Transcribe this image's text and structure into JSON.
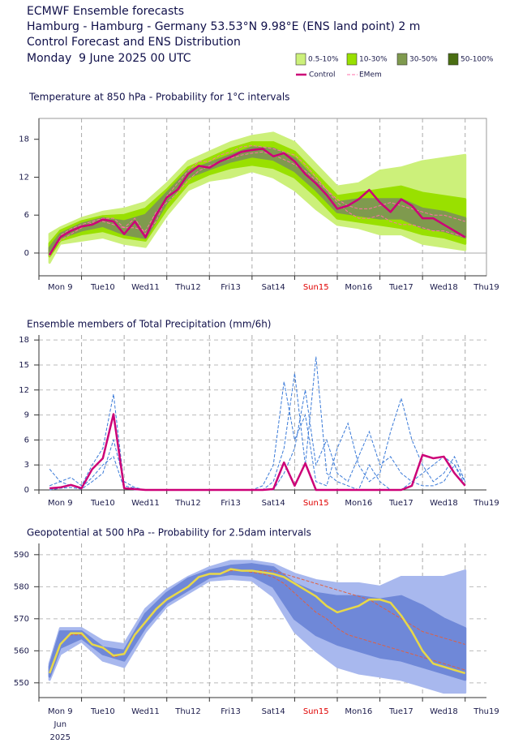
{
  "header": {
    "lines": [
      "ECMWF Ensemble forecasts",
      "Hamburg - Hamburg - Germany 53.53°N 9.98°E (ENS land point) 2 m",
      "Control Forecast and ENS Distribution",
      "Monday  9 June 2025 00 UTC"
    ]
  },
  "chart_data": [
    {
      "type": "band-line",
      "title": "Temperature at 850 hPa - Probability for 1°C intervals",
      "xlim": [
        0,
        252
      ],
      "xticks": [
        {
          "value": 0,
          "label": "Mon 9"
        },
        {
          "value": 24,
          "label": "Tue10"
        },
        {
          "value": 48,
          "label": "Wed11"
        },
        {
          "value": 72,
          "label": "Thu12"
        },
        {
          "value": 96,
          "label": "Fri13"
        },
        {
          "value": 120,
          "label": "Sat14"
        },
        {
          "value": 144,
          "label": "Sun15",
          "color": "#e00000"
        },
        {
          "value": 168,
          "label": "Mon16"
        },
        {
          "value": 192,
          "label": "Tue17"
        },
        {
          "value": 216,
          "label": "Wed18"
        },
        {
          "value": 240,
          "label": "Thu19"
        }
      ],
      "ylim": [
        -3.6,
        21.3
      ],
      "yticks": [
        0,
        6,
        12,
        18
      ],
      "zero_line": true,
      "frame": true,
      "x": [
        6,
        12,
        18,
        24,
        30,
        36,
        42,
        48,
        54,
        60,
        66,
        72,
        78,
        84,
        90,
        96,
        102,
        108,
        114,
        120,
        126,
        132,
        138,
        144,
        150,
        156,
        162,
        168,
        174,
        180,
        186,
        192,
        198,
        204,
        210,
        216,
        222,
        228,
        234,
        240
      ],
      "bands": {
        "x": [
          6,
          12,
          24,
          36,
          48,
          60,
          72,
          84,
          96,
          108,
          120,
          132,
          144,
          156,
          168,
          180,
          192,
          204,
          216,
          228,
          240
        ],
        "series": [
          {
            "name": "0.5-10%",
            "color": "#ccf07a",
            "low": [
              -1.5,
              1.5,
              2,
              2.5,
              1.5,
              1,
              6,
              10,
              11.5,
              12,
              13,
              12,
              10,
              7,
              4.5,
              4,
              3,
              3,
              1.5,
              1,
              0.5
            ],
            "high": [
              3,
              4,
              5.5,
              6.5,
              7,
              8,
              11,
              14.5,
              16,
              17.5,
              18.5,
              19,
              17.5,
              14,
              10.5,
              11,
              13,
              13.5,
              14.5,
              15,
              15.5
            ]
          },
          {
            "name": "10-30%",
            "color": "#99e000",
            "low": [
              -0.5,
              2,
              3,
              3.5,
              2.5,
              2,
              7,
              11,
              12.5,
              13.5,
              14,
              13.5,
              12,
              9,
              5.5,
              5,
              4.5,
              4,
              3,
              2.5,
              1.5
            ],
            "high": [
              1.5,
              3.5,
              5,
              5.8,
              6,
              7,
              10,
              13.5,
              15,
              16.5,
              17.5,
              17.5,
              16,
              12.5,
              9,
              9.5,
              10,
              10.5,
              9.5,
              9,
              8.5
            ]
          },
          {
            "name": "30-50%",
            "color": "#7f9a4e",
            "low": [
              -0.2,
              2.4,
              3.6,
              4.3,
              3,
              2.4,
              8,
              12,
              13.3,
              14.5,
              15.3,
              14.8,
              13,
              10,
              6.5,
              6,
              5.5,
              5.5,
              4,
              3.5,
              2.5
            ],
            "high": [
              0.8,
              3,
              4.6,
              5.5,
              5,
              6,
              9.5,
              13,
              14.2,
              15.5,
              16.7,
              16.5,
              15,
              11.5,
              8,
              8.5,
              8.5,
              8.5,
              7,
              6.5,
              5.5
            ]
          },
          {
            "name": "50-100%",
            "color": "#4a6e12"
          }
        ]
      },
      "members": {
        "name": "EMem",
        "color": "#ff6fa8",
        "values": [
          [
            0,
            2,
            3,
            4,
            4.8,
            5,
            4.5,
            4,
            4,
            3.5,
            6.5,
            8,
            9.5,
            11.5,
            13,
            13.8,
            14.5,
            15,
            15.5,
            15.8,
            16,
            15.5,
            14.8,
            14,
            13,
            11.5,
            10,
            8.5,
            7.5,
            7,
            7,
            7.5,
            8,
            7.5,
            7,
            6.5,
            6,
            6,
            5.5,
            5
          ],
          [
            -0.5,
            2.8,
            3.8,
            4.5,
            5,
            5.5,
            5.5,
            4,
            5.5,
            3,
            5,
            9,
            11,
            13,
            14.5,
            14.5,
            15.5,
            16,
            16.8,
            17,
            16.8,
            16.5,
            16,
            15.5,
            14,
            12,
            10,
            8,
            6.5,
            5.5,
            5.5,
            6,
            5,
            4.5,
            4.5,
            4,
            3.5,
            3.5,
            3,
            2.5
          ]
        ]
      },
      "series": [
        {
          "name": "Control",
          "color": "#cc0077",
          "values": [
            -0.3,
            2.5,
            3.5,
            4.2,
            4.5,
            5.3,
            5,
            3,
            5,
            2.5,
            6,
            8.8,
            10,
            12.5,
            13.8,
            13.5,
            14.5,
            15.2,
            16,
            16.3,
            16.5,
            15.3,
            15.8,
            14.5,
            12.5,
            11,
            9.2,
            7,
            7.5,
            8.5,
            10,
            8,
            6.5,
            8.5,
            7.5,
            5.5,
            5.5,
            4.5,
            3.5,
            2.5
          ]
        }
      ]
    },
    {
      "type": "line",
      "title": "Ensemble members of Total Precipitation (mm/6h)",
      "xlim": [
        0,
        252
      ],
      "xticks": [
        {
          "value": 0,
          "label": "Mon 9"
        },
        {
          "value": 24,
          "label": "Tue10"
        },
        {
          "value": 48,
          "label": "Wed11"
        },
        {
          "value": 72,
          "label": "Thu12"
        },
        {
          "value": 96,
          "label": "Fri13"
        },
        {
          "value": 120,
          "label": "Sat14"
        },
        {
          "value": 144,
          "label": "Sun15",
          "color": "#e00000"
        },
        {
          "value": 168,
          "label": "Mon16"
        },
        {
          "value": 192,
          "label": "Tue17"
        },
        {
          "value": 216,
          "label": "Wed18"
        },
        {
          "value": 240,
          "label": "Thu19"
        }
      ],
      "ylim": [
        0,
        18.6
      ],
      "yticks": [
        0,
        3,
        6,
        9,
        12,
        15,
        18
      ],
      "grid": true,
      "x": [
        6,
        12,
        18,
        24,
        30,
        36,
        42,
        48,
        54,
        60,
        66,
        72,
        78,
        84,
        90,
        96,
        102,
        108,
        114,
        120,
        126,
        132,
        138,
        144,
        150,
        156,
        162,
        168,
        174,
        180,
        186,
        192,
        198,
        204,
        210,
        216,
        222,
        228,
        234,
        240
      ],
      "members": {
        "color": "#3a7ad8",
        "values": [
          [
            0.5,
            1,
            1.5,
            0.5,
            3,
            5,
            11.5,
            0.5,
            0.2,
            0,
            0,
            0,
            0,
            0,
            0,
            0,
            0,
            0,
            0,
            0,
            0,
            1,
            5,
            14,
            3,
            16,
            2,
            1,
            0.5,
            0,
            3,
            1,
            0,
            0,
            1,
            2,
            3,
            4,
            3,
            1
          ],
          [
            2.5,
            1,
            0.5,
            0.3,
            1.5,
            3,
            4,
            0.2,
            0,
            0,
            0,
            0,
            0,
            0,
            0,
            0,
            0,
            0,
            0,
            0,
            0.5,
            3,
            13,
            6,
            9,
            1,
            0.5,
            5,
            8,
            3,
            1,
            2,
            7,
            11,
            6,
            3,
            1,
            2,
            4,
            1
          ],
          [
            0,
            0.2,
            0.3,
            0.1,
            1,
            2,
            6,
            1,
            0.3,
            0,
            0,
            0,
            0,
            0,
            0,
            0,
            0,
            0,
            0,
            0,
            0,
            0,
            2,
            5,
            12,
            3,
            6,
            2,
            1,
            4,
            7,
            3,
            4,
            2,
            1,
            0.5,
            0.5,
            1,
            3,
            0.5
          ]
        ]
      },
      "series": [
        {
          "name": "Control",
          "color": "#cc0077",
          "values": [
            0.2,
            0.3,
            0.6,
            0.2,
            2.5,
            3.8,
            9.1,
            0.2,
            0.1,
            0,
            0,
            0,
            0,
            0,
            0,
            0,
            0,
            0,
            0,
            0,
            0,
            0.1,
            3.3,
            0.5,
            3.2,
            0,
            0,
            0,
            0,
            0,
            0,
            0,
            0,
            0,
            0.5,
            4.2,
            3.8,
            4,
            2,
            0.5
          ]
        }
      ]
    },
    {
      "type": "band-line",
      "title": "Geopotential at 500 hPa -- Probability for 2.5dam intervals",
      "xlim": [
        0,
        252
      ],
      "xticks": [
        {
          "value": 0,
          "label": "Mon 9"
        },
        {
          "value": 24,
          "label": "Tue10"
        },
        {
          "value": 48,
          "label": "Wed11"
        },
        {
          "value": 72,
          "label": "Thu12"
        },
        {
          "value": 96,
          "label": "Fri13"
        },
        {
          "value": 120,
          "label": "Sat14"
        },
        {
          "value": 144,
          "label": "Sun15",
          "color": "#e00000"
        },
        {
          "value": 168,
          "label": "Mon16"
        },
        {
          "value": 192,
          "label": "Tue17"
        },
        {
          "value": 216,
          "label": "Wed18"
        },
        {
          "value": 240,
          "label": "Thu19"
        }
      ],
      "x_sublabels": [
        "Jun",
        "2025"
      ],
      "ylim": [
        545.4,
        593.5
      ],
      "yticks": [
        550,
        560,
        570,
        580,
        590
      ],
      "grid": true,
      "x": [
        6,
        12,
        18,
        24,
        30,
        36,
        42,
        48,
        54,
        60,
        66,
        72,
        78,
        84,
        90,
        96,
        102,
        108,
        114,
        120,
        126,
        132,
        138,
        144,
        150,
        156,
        162,
        168,
        174,
        180,
        186,
        192,
        198,
        204,
        210,
        216,
        222,
        228,
        234,
        240
      ],
      "bands": {
        "x": [
          6,
          12,
          24,
          36,
          48,
          60,
          72,
          84,
          96,
          108,
          120,
          132,
          144,
          156,
          168,
          180,
          192,
          204,
          216,
          228,
          240
        ],
        "series": [
          {
            "color": "#a8b8ee",
            "low": [
              551,
              559,
              563,
              557,
              555,
              566,
              574,
              578,
              582,
              582.5,
              582,
              577,
              566,
              560,
              555,
              553,
              552,
              551,
              549,
              547,
              547
            ],
            "high": [
              556,
              567,
              567,
              563,
              562,
              573,
              579,
              583,
              586,
              588,
              588,
              587,
              584,
              582,
              581,
              581,
              580,
              583,
              583,
              583,
              585
            ]
          },
          {
            "color": "#6f88d8",
            "low": [
              552,
              561,
              564,
              559,
              557,
              567.5,
              575,
              579,
              583,
              584,
              583.5,
              580,
              570,
              565,
              562,
              560,
              558,
              557,
              555,
              553,
              551
            ],
            "high": [
              555,
              566,
              566,
              561,
              560,
              571.5,
              578,
              582.5,
              585,
              586.5,
              587,
              586,
              581,
              578,
              577,
              577,
              576,
              577,
              574,
              570,
              567
            ]
          }
        ]
      },
      "members": {
        "color": "#e06040",
        "values": [
          [
            553,
            562,
            565,
            565,
            562,
            561,
            558,
            559,
            565,
            569,
            573,
            576,
            578,
            580,
            583,
            584,
            584,
            585.5,
            585,
            585,
            585,
            585,
            584,
            583,
            582,
            581,
            580,
            579,
            578,
            577,
            576,
            574,
            572,
            570,
            568,
            566,
            565,
            564,
            563,
            562
          ],
          [
            553,
            562,
            565.5,
            565.5,
            562,
            561,
            558.5,
            559,
            565,
            569,
            573,
            576,
            578,
            580,
            583,
            584,
            584,
            585,
            585,
            584.5,
            584,
            583,
            581,
            578,
            575,
            572,
            570,
            567,
            565,
            564,
            563,
            562,
            561,
            560,
            559,
            558,
            557,
            556,
            555,
            554
          ]
        ]
      },
      "series": [
        {
          "color": "#e8d848",
          "values": [
            553,
            562,
            565.5,
            565.5,
            562,
            561,
            558.5,
            559,
            565,
            569,
            573,
            576,
            578,
            580,
            583,
            584,
            584,
            585.5,
            585,
            585,
            584.5,
            584,
            583,
            581,
            579,
            577,
            574,
            572,
            573,
            574,
            576,
            576,
            575,
            571,
            566,
            560,
            556,
            555,
            554,
            553
          ]
        }
      ]
    }
  ]
}
